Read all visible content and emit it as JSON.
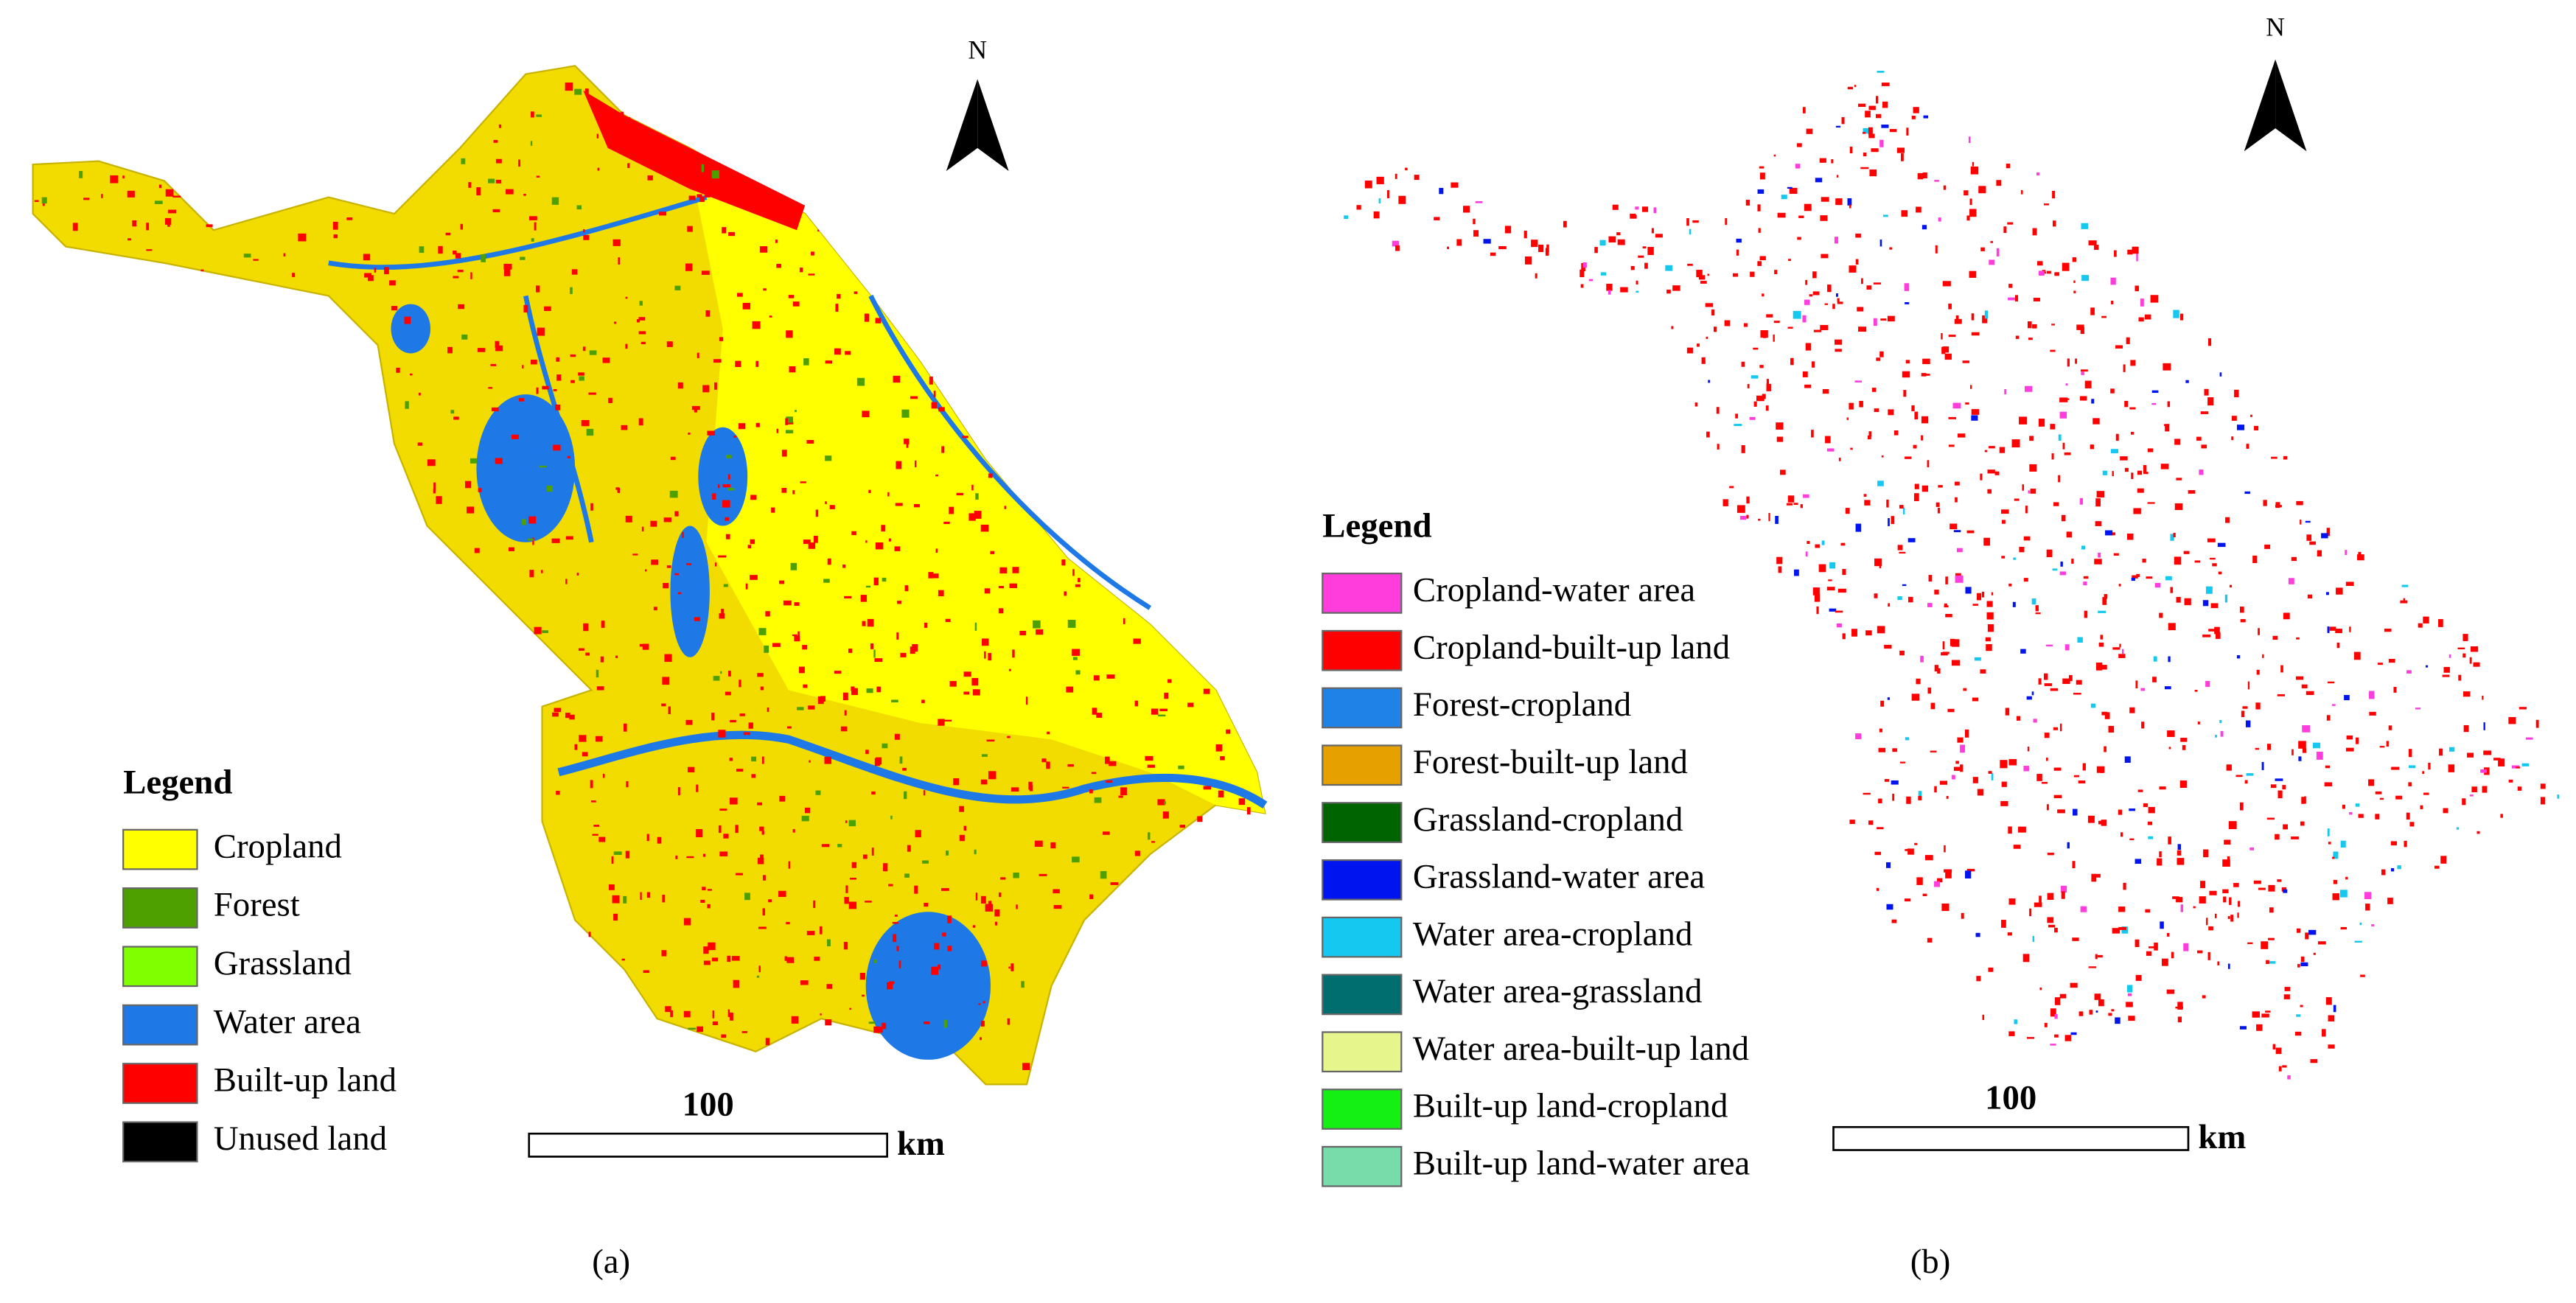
{
  "panels": [
    {
      "north": "N",
      "legend": {
        "title": "Legend",
        "items": [
          {
            "label": "Cropland",
            "color": "#ffff00"
          },
          {
            "label": "Forest",
            "color": "#4ea000"
          },
          {
            "label": "Grassland",
            "color": "#80ff00"
          },
          {
            "label": "Water area",
            "color": "#1e78e6"
          },
          {
            "label": "Built-up land",
            "color": "#ff0000"
          },
          {
            "label": "Unused land",
            "color": "#000000"
          }
        ]
      },
      "scale": {
        "value": "100",
        "unit": "km"
      },
      "caption": "(a)"
    },
    {
      "north": "N",
      "legend": {
        "title": "Legend",
        "items": [
          {
            "label": "Cropland-water area",
            "color": "#ff3cdc"
          },
          {
            "label": "Cropland-built-up land",
            "color": "#ff0000"
          },
          {
            "label": "Forest-cropland",
            "color": "#1e82e6"
          },
          {
            "label": "Forest-built-up land",
            "color": "#e6a000"
          },
          {
            "label": "Grassland-cropland",
            "color": "#006400"
          },
          {
            "label": "Grassland-water area",
            "color": "#0014f0"
          },
          {
            "label": "Water area-cropland",
            "color": "#14c8f0"
          },
          {
            "label": "Water area-grassland",
            "color": "#006e6e"
          },
          {
            "label": "Water area-built-up land",
            "color": "#e6f58c"
          },
          {
            "label": "Built-up land-cropland",
            "color": "#14f014"
          },
          {
            "label": "Built-up land-water area",
            "color": "#78dcaa"
          }
        ]
      },
      "scale": {
        "value": "100",
        "unit": "km"
      },
      "caption": "(b)"
    }
  ]
}
